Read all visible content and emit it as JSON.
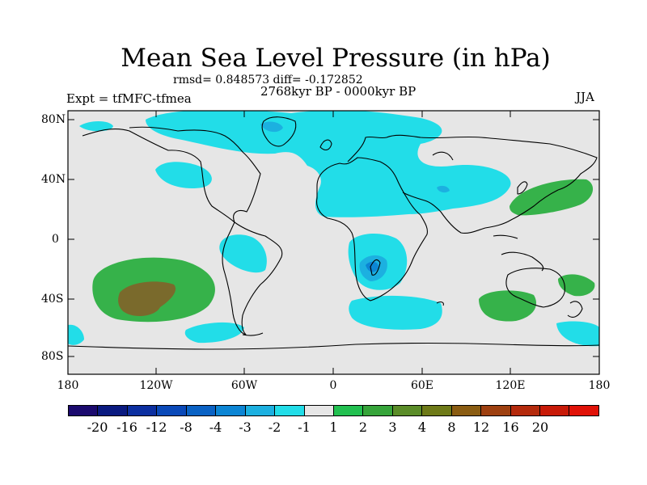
{
  "title": "Mean Sea Level Pressure (in hPa)",
  "stats": "rmsd= 0.848573 diff= -0.172852",
  "period": "2768kyr BP - 0000kyr BP",
  "experiment": "Expt = tfMFC-tfmea",
  "season": "JJA",
  "y_ticks": [
    "80N",
    "40N",
    "0",
    "40S",
    "80S"
  ],
  "x_ticks": [
    "180",
    "120W",
    "60W",
    "0",
    "60E",
    "120E",
    "180"
  ],
  "colorbar": {
    "colors": [
      "#1b0a6e",
      "#0a1a80",
      "#0c2fa0",
      "#0a49b8",
      "#0a62c4",
      "#0c85d4",
      "#1cb0e0",
      "#22dde8",
      "#e6e6e6",
      "#22c050",
      "#36a43a",
      "#5a8c28",
      "#6e7a18",
      "#8a5c12",
      "#9e4010",
      "#b42a0c",
      "#c81a08",
      "#e01208"
    ],
    "labels": [
      "-20",
      "-16",
      "-12",
      "-8",
      "-4",
      "-3",
      "-2",
      "-1",
      "1",
      "2",
      "3",
      "4",
      "8",
      "12",
      "16",
      "20"
    ]
  },
  "colors": {
    "neutral": "#e6e6e6",
    "light_blue": "#22dde8",
    "mid_blue": "#1cb0e0",
    "deep_blue": "#0c85d4",
    "green": "#36b24a",
    "brown": "#7a6a2c"
  }
}
